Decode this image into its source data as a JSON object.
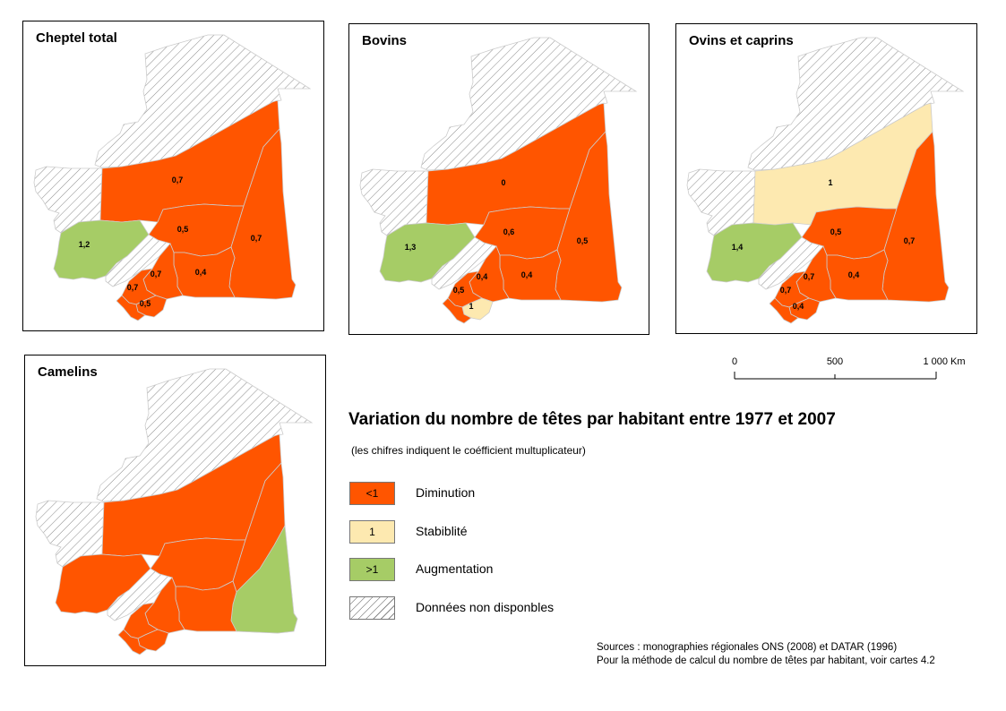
{
  "colors": {
    "diminution": "#ff5500",
    "stabilite": "#fde9b0",
    "augmentation": "#a6cc66",
    "na_hatch": "#8a8a8a",
    "boundary": "#cccccc"
  },
  "maps": [
    {
      "title": "Cheptel total",
      "regions": {
        "north": {
          "class": "na"
        },
        "west_coast": {
          "class": "na"
        },
        "adrar_inchiri": {
          "class": "diminution",
          "label": "0,7"
        },
        "tagant": {
          "class": "diminution",
          "label": "0,5"
        },
        "hodh_chargui": {
          "class": "diminution",
          "label": "0,7"
        },
        "hodh_gharbi": {
          "class": "diminution",
          "label": "0,4"
        },
        "trarza": {
          "class": "augmentation",
          "label": "1,2"
        },
        "nouakchott": {
          "class": "na"
        },
        "assaba": {
          "class": "diminution",
          "label": "0,7"
        },
        "brakna": {
          "class": "diminution",
          "label": "0,7"
        },
        "gorgol": {
          "class": "diminution",
          "label": "0,5"
        },
        "guidimaka": {
          "class": "diminution"
        }
      }
    },
    {
      "title": "Bovins",
      "regions": {
        "north": {
          "class": "na"
        },
        "west_coast": {
          "class": "na"
        },
        "adrar_inchiri": {
          "class": "diminution",
          "label": "0"
        },
        "tagant": {
          "class": "diminution",
          "label": "0,6"
        },
        "hodh_chargui": {
          "class": "diminution",
          "label": "0,5"
        },
        "hodh_gharbi": {
          "class": "diminution",
          "label": "0,4"
        },
        "trarza": {
          "class": "augmentation",
          "label": "1,3"
        },
        "nouakchott": {
          "class": "na"
        },
        "assaba": {
          "class": "diminution",
          "label": "0,4"
        },
        "brakna": {
          "class": "diminution",
          "label": "0,5"
        },
        "gorgol": {
          "class": "stabilite",
          "label": "1"
        },
        "guidimaka": {
          "class": "diminution"
        }
      }
    },
    {
      "title": "Ovins et caprins",
      "regions": {
        "north": {
          "class": "na"
        },
        "west_coast": {
          "class": "na"
        },
        "adrar_inchiri": {
          "class": "stabilite",
          "label": "1"
        },
        "tagant": {
          "class": "diminution",
          "label": "0,5"
        },
        "hodh_chargui": {
          "class": "diminution",
          "label": "0,7"
        },
        "hodh_gharbi": {
          "class": "diminution",
          "label": "0,4"
        },
        "trarza": {
          "class": "augmentation",
          "label": "1,4"
        },
        "nouakchott": {
          "class": "na"
        },
        "assaba": {
          "class": "diminution",
          "label": "0,7"
        },
        "brakna": {
          "class": "diminution",
          "label": "0,7"
        },
        "gorgol": {
          "class": "diminution",
          "label": "0,4"
        },
        "guidimaka": {
          "class": "diminution"
        }
      }
    },
    {
      "title": "Camelins",
      "regions": {
        "north": {
          "class": "na"
        },
        "west_coast": {
          "class": "na"
        },
        "adrar_inchiri": {
          "class": "diminution"
        },
        "tagant": {
          "class": "diminution"
        },
        "hodh_chargui": {
          "class": "diminution"
        },
        "hodh_chargui_east": {
          "class": "augmentation"
        },
        "hodh_gharbi": {
          "class": "diminution"
        },
        "trarza": {
          "class": "diminution"
        },
        "nouakchott": {
          "class": "na"
        },
        "assaba": {
          "class": "diminution"
        },
        "brakna": {
          "class": "diminution"
        },
        "gorgol": {
          "class": "diminution"
        },
        "guidimaka": {
          "class": "diminution"
        }
      }
    }
  ],
  "scale": {
    "labels": [
      "0",
      "500",
      "1 000  Km"
    ]
  },
  "title": "Variation du nombre de têtes par habitant entre 1977 et 2007",
  "subtitle": "(les chifres indiquent le coéfficient multuplicateur)",
  "legend": [
    {
      "class": "diminution",
      "swatch_text": "<1",
      "label": "Diminution"
    },
    {
      "class": "stabilite",
      "swatch_text": "1",
      "label": "Stabiblité"
    },
    {
      "class": "augmentation",
      "swatch_text": ">1",
      "label": "Augmentation"
    },
    {
      "class": "na",
      "swatch_text": "",
      "label": "Données non disponbles"
    }
  ],
  "sources": [
    "Sources : monographies régionales ONS (2008) et DATAR (1996)",
    "Pour la méthode de calcul du nombre de têtes par habitant, voir cartes 4.2"
  ]
}
